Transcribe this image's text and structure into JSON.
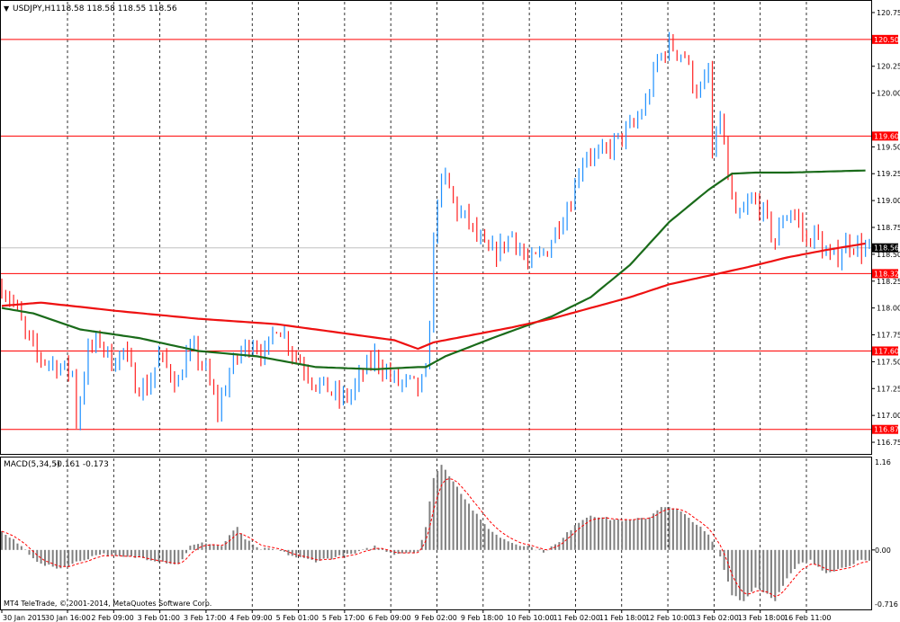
{
  "header": {
    "symbol_label": "USDJPY,H1",
    "ohlc": "118.58 118.58 118.55 118.56"
  },
  "macd": {
    "label": "MACD(5,34,5)",
    "values": "-0.161 -0.173",
    "axis_top": "1.16",
    "axis_zero": "0.00",
    "axis_bottom": "-0.716"
  },
  "copyright": "MT4 TeleTrade, © 2001-2014, MetaQuotes Software Corp.",
  "price_axis_ticks": [
    "120.75",
    "120.25",
    "120.00",
    "119.50",
    "119.25",
    "119.00",
    "118.75",
    "118.50",
    "118.25",
    "118.00",
    "117.75",
    "117.50",
    "117.25",
    "117.00",
    "116.75"
  ],
  "time_labels": [
    "30 Jan 2015",
    "30 Jan 16:00",
    "2 Feb 09:00",
    "3 Feb 01:00",
    "3 Feb 17:00",
    "4 Feb 09:00",
    "5 Feb 01:00",
    "5 Feb 17:00",
    "6 Feb 09:00",
    "9 Feb 02:00",
    "9 Feb 18:00",
    "10 Feb 10:00",
    "11 Feb 02:00",
    "11 Feb 18:00",
    "12 Feb 10:00",
    "13 Feb 02:00",
    "13 Feb 18:00",
    "16 Feb 11:00"
  ],
  "levels": [
    {
      "label": "120.50",
      "value": 120.5
    },
    {
      "label": "119.60",
      "value": 119.6
    },
    {
      "label": "118.32",
      "value": 118.32
    },
    {
      "label": "117.60",
      "value": 117.6
    },
    {
      "label": "116.87",
      "value": 116.87
    }
  ],
  "current_price_label": "118.56",
  "colors": {
    "up_candle": "#1e90ff",
    "down_candle": "#ff2020",
    "level_line": "#ff0000",
    "ma_fast": "#1a6b1a",
    "ma_slow": "#ee1111",
    "macd_hist": "#808080",
    "macd_signal": "#ff0000",
    "grid": "#000000"
  },
  "chart_data": {
    "type": "line",
    "price_range": [
      116.65,
      120.85
    ],
    "macd_range": [
      -0.8,
      1.25
    ],
    "current_price": 118.56,
    "close_path": [
      [
        0,
        118.2
      ],
      [
        3,
        118.05
      ],
      [
        6,
        117.75
      ],
      [
        9,
        117.55
      ],
      [
        12,
        117.5
      ],
      [
        15,
        117.45
      ],
      [
        18,
        117.4
      ],
      [
        19,
        116.95
      ],
      [
        22,
        117.6
      ],
      [
        25,
        117.7
      ],
      [
        28,
        117.5
      ],
      [
        31,
        117.6
      ],
      [
        34,
        117.3
      ],
      [
        37,
        117.25
      ],
      [
        40,
        117.55
      ],
      [
        43,
        117.4
      ],
      [
        45,
        117.3
      ],
      [
        47,
        117.55
      ],
      [
        49,
        117.6
      ],
      [
        52,
        117.4
      ],
      [
        55,
        117.05
      ],
      [
        58,
        117.4
      ],
      [
        61,
        117.6
      ],
      [
        64,
        117.7
      ],
      [
        67,
        117.55
      ],
      [
        70,
        117.85
      ],
      [
        72,
        117.75
      ],
      [
        74,
        117.6
      ],
      [
        77,
        117.45
      ],
      [
        80,
        117.3
      ],
      [
        83,
        117.25
      ],
      [
        86,
        117.15
      ],
      [
        89,
        117.2
      ],
      [
        92,
        117.4
      ],
      [
        95,
        117.55
      ],
      [
        98,
        117.4
      ],
      [
        101,
        117.3
      ],
      [
        104,
        117.3
      ],
      [
        106,
        117.25
      ],
      [
        108,
        117.35
      ],
      [
        109,
        117.9
      ],
      [
        110,
        118.6
      ],
      [
        111,
        119.05
      ],
      [
        113,
        119.2
      ],
      [
        116,
        118.9
      ],
      [
        119,
        118.8
      ],
      [
        121,
        118.65
      ],
      [
        124,
        118.5
      ],
      [
        127,
        118.55
      ],
      [
        130,
        118.7
      ],
      [
        132,
        118.55
      ],
      [
        134,
        118.4
      ],
      [
        136,
        118.45
      ],
      [
        139,
        118.55
      ],
      [
        142,
        118.8
      ],
      [
        145,
        119.0
      ],
      [
        147,
        119.3
      ],
      [
        149,
        119.45
      ],
      [
        152,
        119.4
      ],
      [
        155,
        119.5
      ],
      [
        158,
        119.6
      ],
      [
        161,
        119.7
      ],
      [
        164,
        119.9
      ],
      [
        167,
        120.3
      ],
      [
        170,
        120.45
      ],
      [
        172,
        120.4
      ],
      [
        174,
        120.35
      ],
      [
        176,
        120.1
      ],
      [
        178,
        120.0
      ],
      [
        180,
        120.2
      ],
      [
        181,
        119.4
      ],
      [
        183,
        119.8
      ],
      [
        185,
        119.2
      ],
      [
        187,
        118.8
      ],
      [
        189,
        118.9
      ],
      [
        191,
        119.0
      ],
      [
        193,
        118.95
      ],
      [
        195,
        118.8
      ],
      [
        197,
        118.6
      ],
      [
        199,
        118.85
      ],
      [
        201,
        118.9
      ],
      [
        203,
        118.8
      ],
      [
        205,
        118.6
      ],
      [
        207,
        118.7
      ],
      [
        209,
        118.55
      ],
      [
        211,
        118.45
      ],
      [
        213,
        118.5
      ],
      [
        215,
        118.6
      ],
      [
        217,
        118.6
      ],
      [
        219,
        118.55
      ],
      [
        221,
        118.56
      ]
    ],
    "ma_fast_path": [
      [
        0,
        118.0
      ],
      [
        8,
        117.95
      ],
      [
        20,
        117.8
      ],
      [
        35,
        117.72
      ],
      [
        50,
        117.6
      ],
      [
        65,
        117.55
      ],
      [
        80,
        117.45
      ],
      [
        95,
        117.43
      ],
      [
        106,
        117.45
      ],
      [
        108,
        117.45
      ],
      [
        113,
        117.55
      ],
      [
        125,
        117.72
      ],
      [
        140,
        117.92
      ],
      [
        150,
        118.1
      ],
      [
        160,
        118.4
      ],
      [
        170,
        118.8
      ],
      [
        180,
        119.1
      ],
      [
        186,
        119.25
      ],
      [
        192,
        119.26
      ],
      [
        200,
        119.26
      ],
      [
        210,
        119.27
      ],
      [
        220,
        119.28
      ]
    ],
    "ma_slow_path": [
      [
        0,
        118.02
      ],
      [
        10,
        118.05
      ],
      [
        30,
        117.97
      ],
      [
        50,
        117.9
      ],
      [
        70,
        117.85
      ],
      [
        90,
        117.75
      ],
      [
        100,
        117.7
      ],
      [
        106,
        117.62
      ],
      [
        110,
        117.68
      ],
      [
        120,
        117.75
      ],
      [
        130,
        117.82
      ],
      [
        140,
        117.9
      ],
      [
        150,
        118.0
      ],
      [
        160,
        118.1
      ],
      [
        170,
        118.22
      ],
      [
        180,
        118.3
      ],
      [
        190,
        118.38
      ],
      [
        200,
        118.47
      ],
      [
        210,
        118.54
      ],
      [
        220,
        118.6
      ]
    ],
    "macd_hist_path": [
      [
        0,
        0.25
      ],
      [
        5,
        0.05
      ],
      [
        10,
        -0.2
      ],
      [
        15,
        -0.25
      ],
      [
        20,
        -0.15
      ],
      [
        25,
        -0.05
      ],
      [
        30,
        -0.1
      ],
      [
        35,
        -0.1
      ],
      [
        40,
        -0.15
      ],
      [
        45,
        -0.2
      ],
      [
        48,
        0.05
      ],
      [
        52,
        0.1
      ],
      [
        56,
        0.05
      ],
      [
        58,
        0.2
      ],
      [
        60,
        0.3
      ],
      [
        62,
        0.15
      ],
      [
        65,
        0.02
      ],
      [
        70,
        0.0
      ],
      [
        75,
        -0.1
      ],
      [
        80,
        -0.15
      ],
      [
        85,
        -0.1
      ],
      [
        90,
        -0.05
      ],
      [
        95,
        0.05
      ],
      [
        100,
        -0.05
      ],
      [
        106,
        -0.02
      ],
      [
        108,
        0.3
      ],
      [
        110,
        1.0
      ],
      [
        112,
        1.16
      ],
      [
        115,
        0.95
      ],
      [
        118,
        0.7
      ],
      [
        122,
        0.4
      ],
      [
        126,
        0.2
      ],
      [
        130,
        0.1
      ],
      [
        134,
        0.05
      ],
      [
        138,
        -0.02
      ],
      [
        142,
        0.1
      ],
      [
        146,
        0.35
      ],
      [
        150,
        0.48
      ],
      [
        155,
        0.42
      ],
      [
        160,
        0.4
      ],
      [
        165,
        0.45
      ],
      [
        168,
        0.6
      ],
      [
        172,
        0.55
      ],
      [
        176,
        0.4
      ],
      [
        180,
        0.2
      ],
      [
        183,
        -0.1
      ],
      [
        186,
        -0.6
      ],
      [
        189,
        -0.7
      ],
      [
        192,
        -0.5
      ],
      [
        195,
        -0.6
      ],
      [
        197,
        -0.68
      ],
      [
        200,
        -0.4
      ],
      [
        203,
        -0.2
      ],
      [
        206,
        -0.15
      ],
      [
        210,
        -0.3
      ],
      [
        214,
        -0.25
      ],
      [
        218,
        -0.15
      ],
      [
        221,
        -0.16
      ]
    ]
  }
}
